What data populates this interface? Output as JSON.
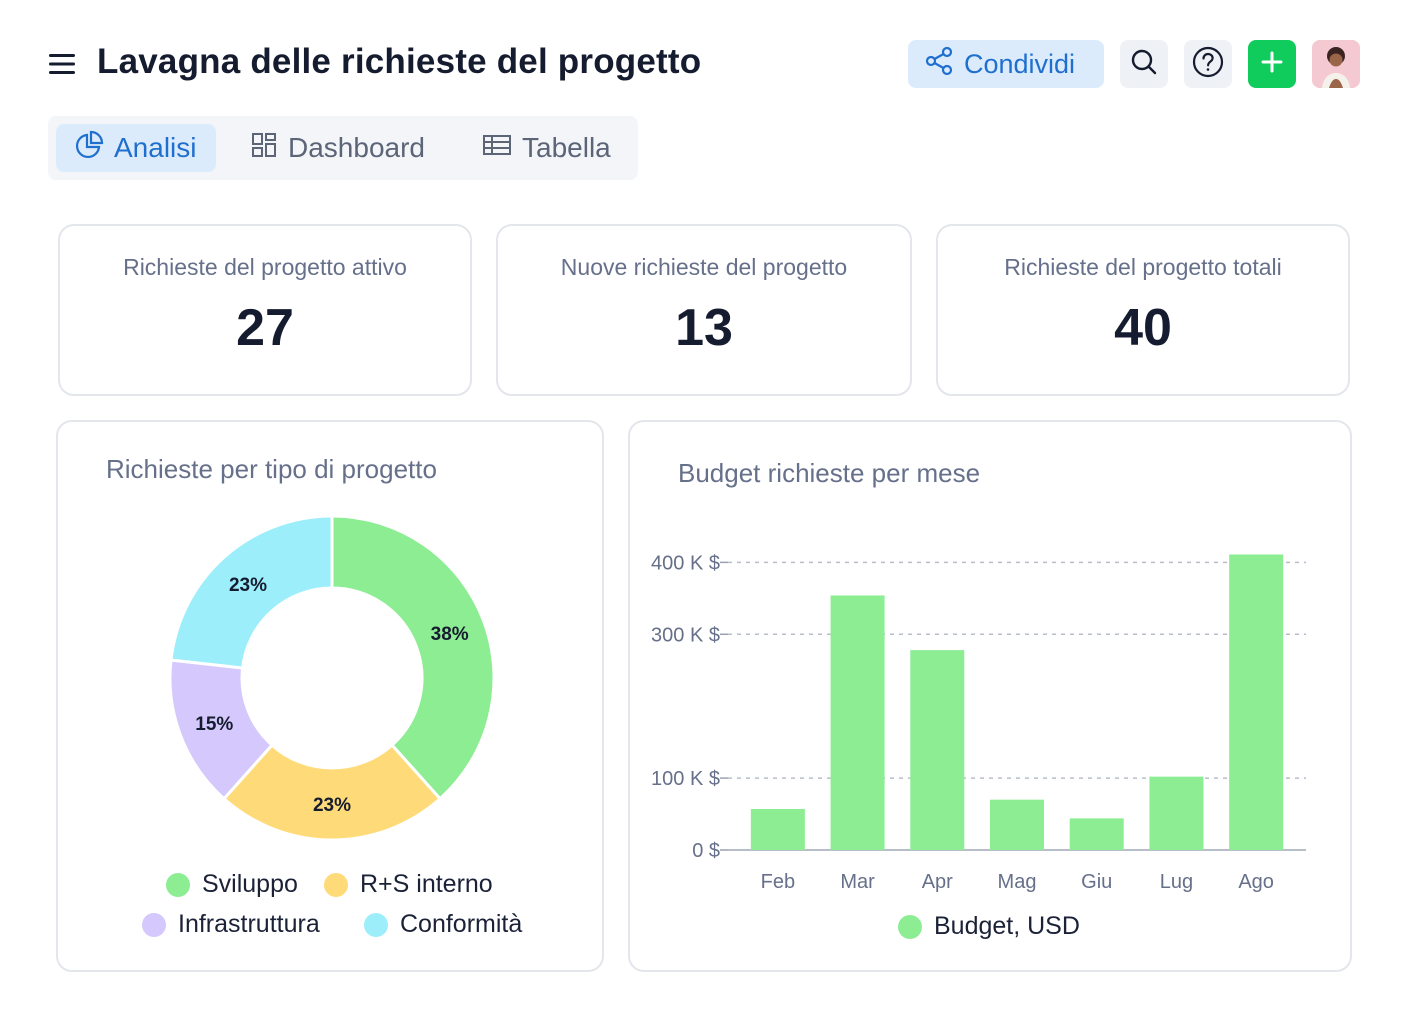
{
  "header": {
    "title": "Lavagna delle richieste del progetto",
    "share_label": "Condividi",
    "icons": [
      "menu-icon",
      "share-icon",
      "search-icon",
      "help-icon",
      "plus-icon",
      "avatar"
    ]
  },
  "tabs": [
    {
      "label": "Analisi",
      "icon": "pie-chart-icon",
      "active": true
    },
    {
      "label": "Dashboard",
      "icon": "dashboard-icon",
      "active": false
    },
    {
      "label": "Tabella",
      "icon": "table-icon",
      "active": false
    }
  ],
  "stats": [
    {
      "label": "Richieste del progetto attivo",
      "value": "27"
    },
    {
      "label": "Nuove richieste del progetto",
      "value": "13"
    },
    {
      "label": "Richieste del progetto totali",
      "value": "40"
    }
  ],
  "colors": {
    "accent": "#1f6fcf",
    "accent_bg": "#dcebfb",
    "add_button": "#0fcc5c",
    "bar": "#8ced93"
  },
  "chart_data": [
    {
      "type": "pie",
      "title": "Richieste per tipo di progetto",
      "style": "donut",
      "slices": [
        {
          "label": "Sviluppo",
          "value": 38,
          "display": "38%",
          "color": "#8ced93"
        },
        {
          "label": "R+S interno",
          "value": 23,
          "display": "23%",
          "color": "#fedb78"
        },
        {
          "label": "Infrastruttura",
          "value": 15,
          "display": "15%",
          "color": "#d4c8fc"
        },
        {
          "label": "Conformità",
          "value": 23,
          "display": "23%",
          "color": "#9beefa"
        }
      ],
      "legend_placement": "bottom"
    },
    {
      "type": "bar",
      "title": "Budget richieste per mese",
      "categories": [
        "Feb",
        "Mar",
        "Apr",
        "Mag",
        "Giu",
        "Lug",
        "Ago"
      ],
      "series": [
        {
          "name": "Budget, USD",
          "values": [
            57,
            354,
            278,
            70,
            44,
            102,
            411
          ],
          "color": "#8ced93"
        }
      ],
      "y_ticks": [
        0,
        100,
        300,
        400
      ],
      "y_tick_labels": [
        "0 $",
        "100 K $",
        "300 K $",
        "400 K $"
      ],
      "ylim": [
        0,
        420
      ],
      "grid": true,
      "legend_placement": "bottom"
    }
  ]
}
